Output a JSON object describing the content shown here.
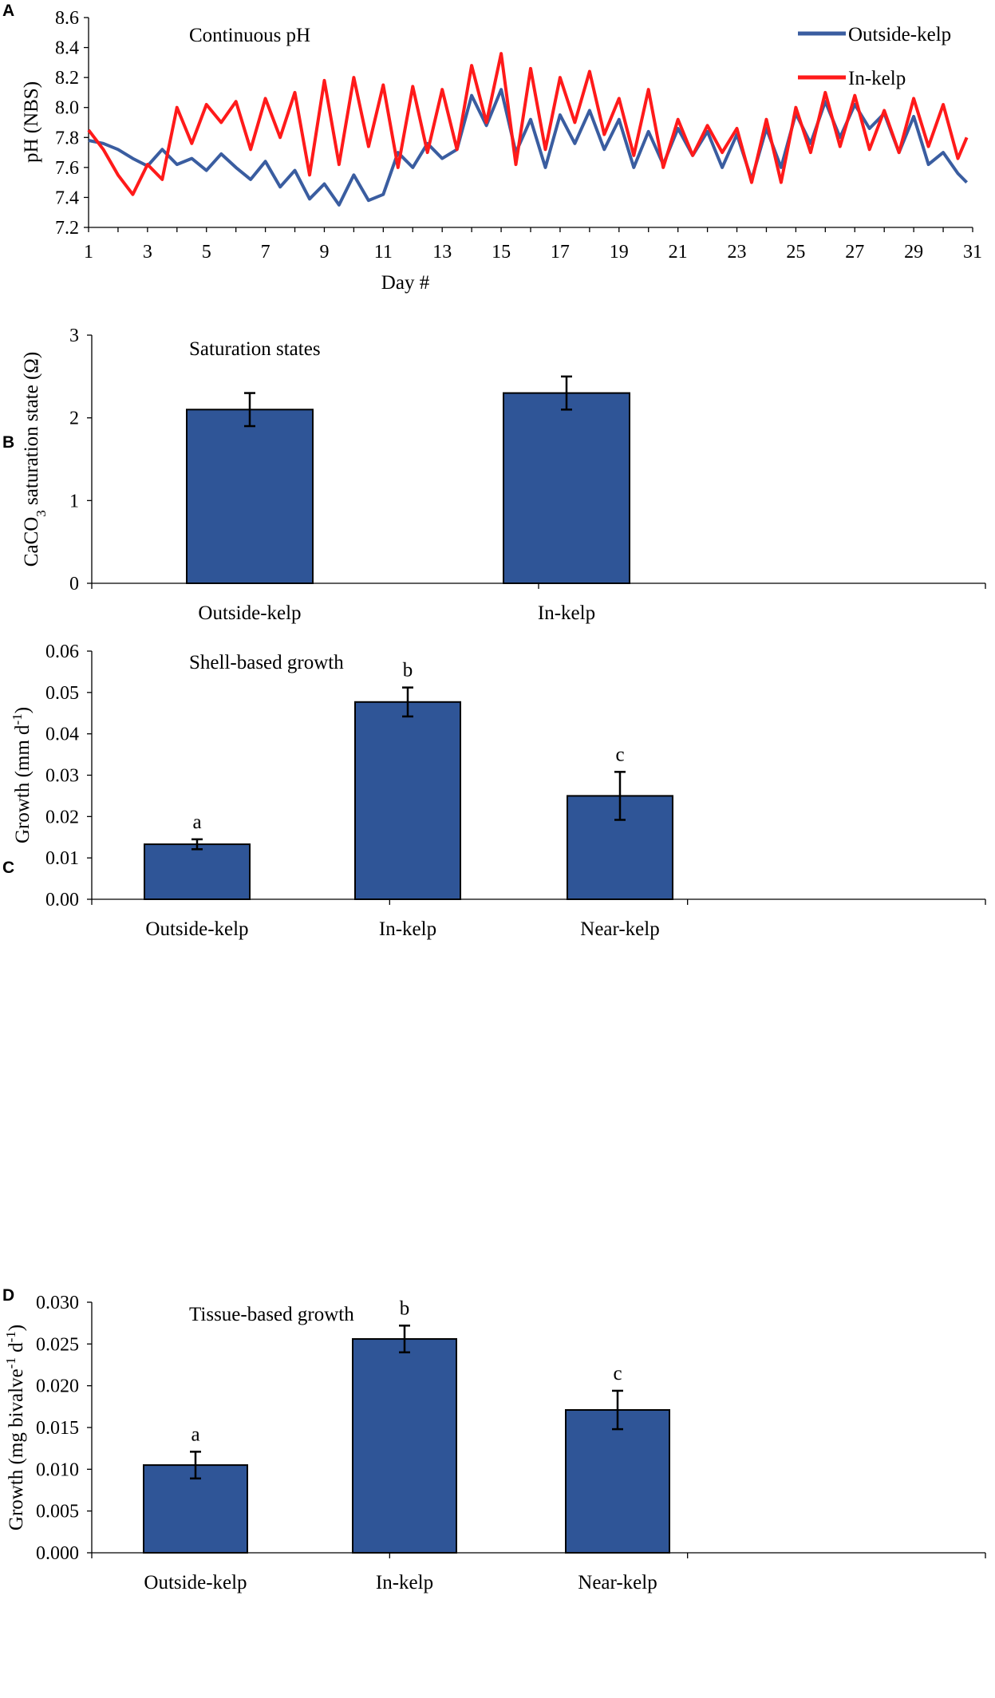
{
  "colors": {
    "bar_fill": "#2F5597",
    "outside_line": "#3A5DA0",
    "in_line": "#FF1A1A",
    "axis": "#000000"
  },
  "chart_data": [
    {
      "panel": "A",
      "type": "line",
      "title": "Continuous pH",
      "xlabel": "Day #",
      "ylabel": "pH (NBS)",
      "xlim": [
        1,
        31
      ],
      "ylim": [
        7.2,
        8.6
      ],
      "yticks": [
        "7.2",
        "7.4",
        "7.6",
        "7.8",
        "8.0",
        "8.2",
        "8.4",
        "8.6"
      ],
      "xticks": [
        "1",
        "3",
        "5",
        "7",
        "9",
        "11",
        "13",
        "15",
        "17",
        "19",
        "21",
        "23",
        "25",
        "27",
        "29",
        "31"
      ],
      "legend": "top-right",
      "series": [
        {
          "name": "Outside-kelp",
          "color": "#3A5DA0",
          "x": [
            1,
            1.5,
            2,
            2.5,
            3,
            3.5,
            4,
            4.5,
            5,
            5.5,
            6,
            6.5,
            7,
            7.5,
            8,
            8.5,
            9,
            9.5,
            10,
            10.5,
            11,
            11.5,
            12,
            12.5,
            13,
            13.5,
            14,
            14.5,
            15,
            15.5,
            16,
            16.5,
            17,
            17.5,
            18,
            18.5,
            19,
            19.5,
            20,
            20.5,
            21,
            21.5,
            22,
            22.5,
            23,
            23.5,
            24,
            24.5,
            25,
            25.5,
            26,
            26.5,
            27,
            27.5,
            28,
            28.5,
            29,
            29.5,
            30,
            30.5,
            30.8
          ],
          "y": [
            7.78,
            7.76,
            7.72,
            7.66,
            7.61,
            7.72,
            7.62,
            7.66,
            7.58,
            7.69,
            7.6,
            7.52,
            7.64,
            7.47,
            7.58,
            7.39,
            7.49,
            7.35,
            7.55,
            7.38,
            7.42,
            7.7,
            7.6,
            7.76,
            7.66,
            7.72,
            8.08,
            7.88,
            8.12,
            7.7,
            7.92,
            7.6,
            7.95,
            7.76,
            7.98,
            7.72,
            7.92,
            7.6,
            7.84,
            7.62,
            7.86,
            7.68,
            7.84,
            7.6,
            7.82,
            7.52,
            7.86,
            7.6,
            7.96,
            7.76,
            8.04,
            7.8,
            8.02,
            7.86,
            7.96,
            7.7,
            7.94,
            7.62,
            7.7,
            7.56,
            7.5
          ]
        },
        {
          "name": "In-kelp",
          "color": "#FF1A1A",
          "x": [
            1,
            1.5,
            2,
            2.5,
            3,
            3.5,
            4,
            4.5,
            5,
            5.5,
            6,
            6.5,
            7,
            7.5,
            8,
            8.5,
            9,
            9.5,
            10,
            10.5,
            11,
            11.5,
            12,
            12.5,
            13,
            13.5,
            14,
            14.5,
            15,
            15.5,
            16,
            16.5,
            17,
            17.5,
            18,
            18.5,
            19,
            19.5,
            20,
            20.5,
            21,
            21.5,
            22,
            22.5,
            23,
            23.5,
            24,
            24.5,
            25,
            25.5,
            26,
            26.5,
            27,
            27.5,
            28,
            28.5,
            29,
            29.5,
            30,
            30.5,
            30.8
          ],
          "y": [
            7.85,
            7.72,
            7.55,
            7.42,
            7.62,
            7.52,
            8.0,
            7.76,
            8.02,
            7.9,
            8.04,
            7.72,
            8.06,
            7.8,
            8.1,
            7.55,
            8.18,
            7.62,
            8.2,
            7.74,
            8.15,
            7.6,
            8.14,
            7.7,
            8.12,
            7.72,
            8.28,
            7.9,
            8.36,
            7.62,
            8.26,
            7.72,
            8.2,
            7.9,
            8.24,
            7.82,
            8.06,
            7.68,
            8.12,
            7.6,
            7.92,
            7.68,
            7.88,
            7.7,
            7.86,
            7.5,
            7.92,
            7.5,
            8.0,
            7.7,
            8.1,
            7.74,
            8.08,
            7.72,
            7.98,
            7.7,
            8.06,
            7.74,
            8.02,
            7.66,
            7.8
          ]
        }
      ]
    },
    {
      "panel": "B",
      "type": "bar",
      "title": "Saturation states",
      "ylabel": "CaCO3 saturation state (Ω)",
      "ylabel_parts": [
        "CaCO",
        "3",
        " saturation state (Ω)"
      ],
      "categories": [
        "Outside-kelp",
        "In-kelp"
      ],
      "values": [
        2.1,
        2.3
      ],
      "errors": [
        0.2,
        0.2
      ],
      "letters": [
        "",
        ""
      ],
      "ylim": [
        0,
        3
      ],
      "yticks": [
        "0",
        "1",
        "2",
        "3"
      ]
    },
    {
      "panel": "C",
      "type": "bar",
      "title": "Shell-based growth",
      "ylabel": "Growth (mm d-1)",
      "ylabel_parts": [
        "Growth (mm d",
        "-1",
        ")"
      ],
      "categories": [
        "Outside-kelp",
        "In-kelp",
        "Near-kelp"
      ],
      "values": [
        0.0133,
        0.0477,
        0.025
      ],
      "errors": [
        0.0012,
        0.0035,
        0.0058
      ],
      "letters": [
        "a",
        "b",
        "c"
      ],
      "ylim": [
        0,
        0.06
      ],
      "yticks": [
        "0.00",
        "0.01",
        "0.02",
        "0.03",
        "0.04",
        "0.05",
        "0.06"
      ]
    },
    {
      "panel": "D",
      "type": "bar",
      "title": "Tissue-based growth",
      "ylabel": "Growth (mg bivalve-1 d-1)",
      "ylabel_parts": [
        "Growth (mg bivalve",
        "-1",
        " d",
        "-1",
        ")"
      ],
      "categories": [
        "Outside-kelp",
        "In-kelp",
        "Near-kelp"
      ],
      "values": [
        0.0105,
        0.0256,
        0.0171
      ],
      "errors": [
        0.0016,
        0.0016,
        0.0023
      ],
      "letters": [
        "a",
        "b",
        "c"
      ],
      "ylim": [
        0,
        0.03
      ],
      "yticks": [
        "0.000",
        "0.005",
        "0.010",
        "0.015",
        "0.020",
        "0.025",
        "0.030"
      ]
    }
  ]
}
